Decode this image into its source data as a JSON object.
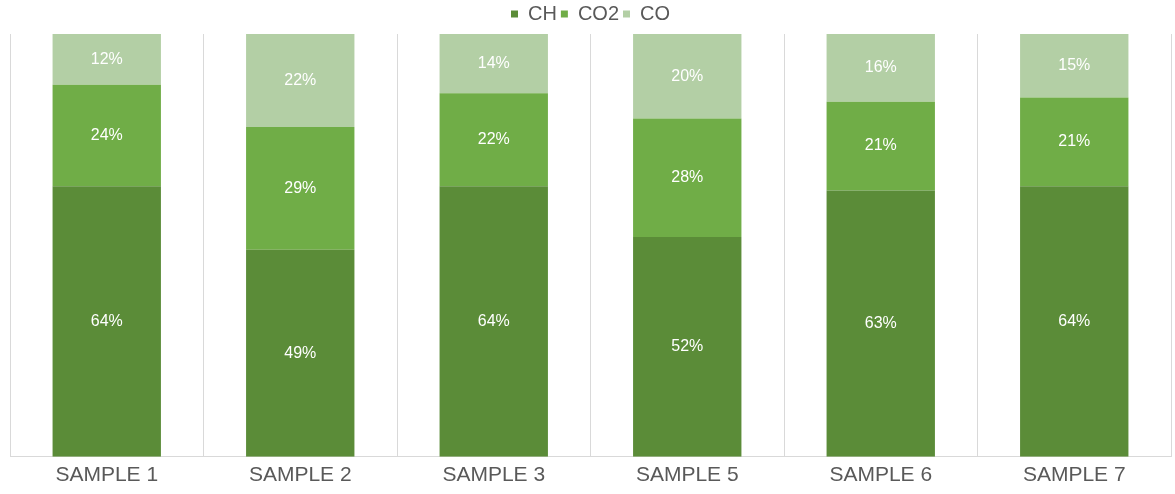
{
  "chart_data": {
    "type": "bar",
    "stacked": true,
    "categories": [
      "SAMPLE 1",
      "SAMPLE 2",
      "SAMPLE 3",
      "SAMPLE 5",
      "SAMPLE 6",
      "SAMPLE 7"
    ],
    "series": [
      {
        "name": "CH",
        "color": "#5b8c38",
        "values": [
          64,
          49,
          64,
          52,
          63,
          64
        ],
        "value_labels": [
          "64%",
          "49%",
          "64%",
          "52%",
          "63%",
          "64%"
        ]
      },
      {
        "name": "CO2",
        "color": "#70ad47",
        "values": [
          24,
          29,
          22,
          28,
          21,
          21
        ],
        "value_labels": [
          "24%",
          "29%",
          "22%",
          "28%",
          "21%",
          "21%"
        ]
      },
      {
        "name": "CO",
        "color": "#b3cfa5",
        "values": [
          12,
          22,
          14,
          20,
          16,
          15
        ],
        "value_labels": [
          "12%",
          "22%",
          "14%",
          "20%",
          "16%",
          "15%"
        ]
      }
    ],
    "ylim": [
      0,
      100
    ],
    "tick_labels": "x",
    "grid": "x",
    "legend": "top"
  }
}
